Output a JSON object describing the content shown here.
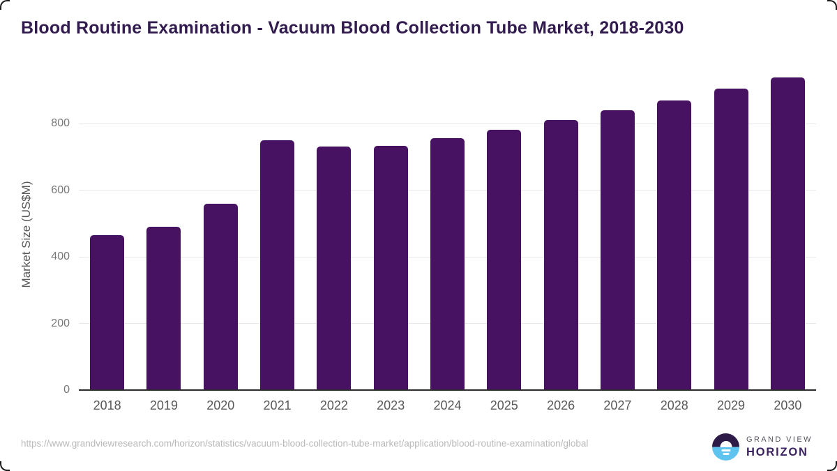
{
  "page": {
    "source_url": "https://www.grandviewresearch.com/horizon/statistics/vacuum-blood-collection-tube-market/application/blood-routine-examination/global"
  },
  "chart_data": {
    "type": "bar",
    "title": "Blood Routine Examination - Vacuum Blood Collection Tube Market, 2018-2030",
    "categories": [
      "2018",
      "2019",
      "2020",
      "2021",
      "2022",
      "2023",
      "2024",
      "2025",
      "2026",
      "2027",
      "2028",
      "2029",
      "2030"
    ],
    "values": [
      464,
      490,
      559,
      750,
      730,
      733,
      756,
      781,
      811,
      840,
      870,
      904,
      939
    ],
    "xlabel": "",
    "ylabel": "Market Size (US$M)",
    "ylim": [
      0,
      950
    ],
    "yticks": [
      0,
      200,
      400,
      600,
      800
    ],
    "grid": "horizontal",
    "legend": "none",
    "bar_color": "#481263"
  },
  "branding": {
    "name_top": "GRAND VIEW",
    "name_bottom": "HORIZON"
  },
  "colors": {
    "title": "#321b4e",
    "bar": "#481263",
    "gridline": "#e8e8e8",
    "axis_line": "#2b2b2b",
    "tick_label": "#777777",
    "category_label": "#595959",
    "source_text": "#b9b9b9",
    "logo_dark": "#2e1a47",
    "logo_blue": "#5fc3f0",
    "logo_wordmark": "#3b2260"
  }
}
